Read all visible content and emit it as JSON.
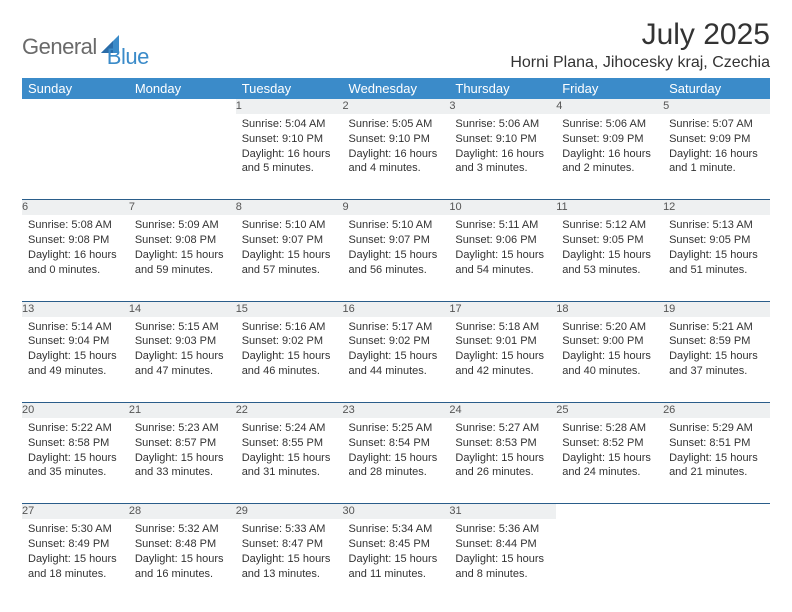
{
  "brand": {
    "text1": "General",
    "text2": "Blue",
    "color1": "#6a6a6a",
    "color2": "#3b8bc9"
  },
  "title": "July 2025",
  "location": "Horni Plana, Jihocesky kraj, Czechia",
  "header_bg": "#3b8bc9",
  "header_fg": "#ffffff",
  "daynum_bg": "#eef0f1",
  "row_divider": "#2a5d8a",
  "weekdays": [
    "Sunday",
    "Monday",
    "Tuesday",
    "Wednesday",
    "Thursday",
    "Friday",
    "Saturday"
  ],
  "weeks": [
    [
      null,
      null,
      {
        "n": "1",
        "sr": "Sunrise: 5:04 AM",
        "ss": "Sunset: 9:10 PM",
        "dl": "Daylight: 16 hours and 5 minutes."
      },
      {
        "n": "2",
        "sr": "Sunrise: 5:05 AM",
        "ss": "Sunset: 9:10 PM",
        "dl": "Daylight: 16 hours and 4 minutes."
      },
      {
        "n": "3",
        "sr": "Sunrise: 5:06 AM",
        "ss": "Sunset: 9:10 PM",
        "dl": "Daylight: 16 hours and 3 minutes."
      },
      {
        "n": "4",
        "sr": "Sunrise: 5:06 AM",
        "ss": "Sunset: 9:09 PM",
        "dl": "Daylight: 16 hours and 2 minutes."
      },
      {
        "n": "5",
        "sr": "Sunrise: 5:07 AM",
        "ss": "Sunset: 9:09 PM",
        "dl": "Daylight: 16 hours and 1 minute."
      }
    ],
    [
      {
        "n": "6",
        "sr": "Sunrise: 5:08 AM",
        "ss": "Sunset: 9:08 PM",
        "dl": "Daylight: 16 hours and 0 minutes."
      },
      {
        "n": "7",
        "sr": "Sunrise: 5:09 AM",
        "ss": "Sunset: 9:08 PM",
        "dl": "Daylight: 15 hours and 59 minutes."
      },
      {
        "n": "8",
        "sr": "Sunrise: 5:10 AM",
        "ss": "Sunset: 9:07 PM",
        "dl": "Daylight: 15 hours and 57 minutes."
      },
      {
        "n": "9",
        "sr": "Sunrise: 5:10 AM",
        "ss": "Sunset: 9:07 PM",
        "dl": "Daylight: 15 hours and 56 minutes."
      },
      {
        "n": "10",
        "sr": "Sunrise: 5:11 AM",
        "ss": "Sunset: 9:06 PM",
        "dl": "Daylight: 15 hours and 54 minutes."
      },
      {
        "n": "11",
        "sr": "Sunrise: 5:12 AM",
        "ss": "Sunset: 9:05 PM",
        "dl": "Daylight: 15 hours and 53 minutes."
      },
      {
        "n": "12",
        "sr": "Sunrise: 5:13 AM",
        "ss": "Sunset: 9:05 PM",
        "dl": "Daylight: 15 hours and 51 minutes."
      }
    ],
    [
      {
        "n": "13",
        "sr": "Sunrise: 5:14 AM",
        "ss": "Sunset: 9:04 PM",
        "dl": "Daylight: 15 hours and 49 minutes."
      },
      {
        "n": "14",
        "sr": "Sunrise: 5:15 AM",
        "ss": "Sunset: 9:03 PM",
        "dl": "Daylight: 15 hours and 47 minutes."
      },
      {
        "n": "15",
        "sr": "Sunrise: 5:16 AM",
        "ss": "Sunset: 9:02 PM",
        "dl": "Daylight: 15 hours and 46 minutes."
      },
      {
        "n": "16",
        "sr": "Sunrise: 5:17 AM",
        "ss": "Sunset: 9:02 PM",
        "dl": "Daylight: 15 hours and 44 minutes."
      },
      {
        "n": "17",
        "sr": "Sunrise: 5:18 AM",
        "ss": "Sunset: 9:01 PM",
        "dl": "Daylight: 15 hours and 42 minutes."
      },
      {
        "n": "18",
        "sr": "Sunrise: 5:20 AM",
        "ss": "Sunset: 9:00 PM",
        "dl": "Daylight: 15 hours and 40 minutes."
      },
      {
        "n": "19",
        "sr": "Sunrise: 5:21 AM",
        "ss": "Sunset: 8:59 PM",
        "dl": "Daylight: 15 hours and 37 minutes."
      }
    ],
    [
      {
        "n": "20",
        "sr": "Sunrise: 5:22 AM",
        "ss": "Sunset: 8:58 PM",
        "dl": "Daylight: 15 hours and 35 minutes."
      },
      {
        "n": "21",
        "sr": "Sunrise: 5:23 AM",
        "ss": "Sunset: 8:57 PM",
        "dl": "Daylight: 15 hours and 33 minutes."
      },
      {
        "n": "22",
        "sr": "Sunrise: 5:24 AM",
        "ss": "Sunset: 8:55 PM",
        "dl": "Daylight: 15 hours and 31 minutes."
      },
      {
        "n": "23",
        "sr": "Sunrise: 5:25 AM",
        "ss": "Sunset: 8:54 PM",
        "dl": "Daylight: 15 hours and 28 minutes."
      },
      {
        "n": "24",
        "sr": "Sunrise: 5:27 AM",
        "ss": "Sunset: 8:53 PM",
        "dl": "Daylight: 15 hours and 26 minutes."
      },
      {
        "n": "25",
        "sr": "Sunrise: 5:28 AM",
        "ss": "Sunset: 8:52 PM",
        "dl": "Daylight: 15 hours and 24 minutes."
      },
      {
        "n": "26",
        "sr": "Sunrise: 5:29 AM",
        "ss": "Sunset: 8:51 PM",
        "dl": "Daylight: 15 hours and 21 minutes."
      }
    ],
    [
      {
        "n": "27",
        "sr": "Sunrise: 5:30 AM",
        "ss": "Sunset: 8:49 PM",
        "dl": "Daylight: 15 hours and 18 minutes."
      },
      {
        "n": "28",
        "sr": "Sunrise: 5:32 AM",
        "ss": "Sunset: 8:48 PM",
        "dl": "Daylight: 15 hours and 16 minutes."
      },
      {
        "n": "29",
        "sr": "Sunrise: 5:33 AM",
        "ss": "Sunset: 8:47 PM",
        "dl": "Daylight: 15 hours and 13 minutes."
      },
      {
        "n": "30",
        "sr": "Sunrise: 5:34 AM",
        "ss": "Sunset: 8:45 PM",
        "dl": "Daylight: 15 hours and 11 minutes."
      },
      {
        "n": "31",
        "sr": "Sunrise: 5:36 AM",
        "ss": "Sunset: 8:44 PM",
        "dl": "Daylight: 15 hours and 8 minutes."
      },
      null,
      null
    ]
  ]
}
